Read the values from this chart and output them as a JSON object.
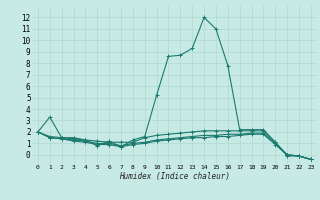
{
  "title": "",
  "xlabel": "Humidex (Indice chaleur)",
  "background_color": "#c8eae5",
  "grid_color": "#b0d8d3",
  "line_color": "#1a7a6e",
  "series1": {
    "x": [
      0,
      1,
      2,
      3,
      4,
      5,
      6,
      7,
      8,
      9,
      10,
      11,
      12,
      13,
      14,
      15,
      16,
      17,
      18,
      19,
      20,
      21,
      22,
      23
    ],
    "y": [
      2.0,
      3.3,
      1.5,
      1.5,
      1.3,
      0.8,
      1.2,
      0.7,
      1.3,
      1.6,
      5.2,
      8.6,
      8.7,
      9.3,
      12.0,
      11.0,
      7.8,
      2.2,
      2.2,
      2.2,
      1.1,
      -0.1,
      -0.1,
      -0.4
    ]
  },
  "series2": {
    "x": [
      0,
      1,
      2,
      3,
      4,
      5,
      6,
      7,
      8,
      9,
      10,
      11,
      12,
      13,
      14,
      15,
      16,
      17,
      18,
      19,
      20,
      21,
      22,
      23
    ],
    "y": [
      2.0,
      1.6,
      1.5,
      1.4,
      1.3,
      1.2,
      1.1,
      1.1,
      1.1,
      1.5,
      1.7,
      1.8,
      1.9,
      2.0,
      2.1,
      2.1,
      2.1,
      2.1,
      2.1,
      2.1,
      1.1,
      0.0,
      -0.1,
      -0.4
    ]
  },
  "series3": {
    "x": [
      0,
      1,
      2,
      3,
      4,
      5,
      6,
      7,
      8,
      9,
      10,
      11,
      12,
      13,
      14,
      15,
      16,
      17,
      18,
      19,
      20,
      21,
      22,
      23
    ],
    "y": [
      2.0,
      1.5,
      1.4,
      1.3,
      1.2,
      1.0,
      1.0,
      0.8,
      1.0,
      1.1,
      1.3,
      1.4,
      1.5,
      1.6,
      1.7,
      1.7,
      1.8,
      1.8,
      1.9,
      1.9,
      1.0,
      0.0,
      -0.1,
      -0.4
    ]
  },
  "series4": {
    "x": [
      0,
      1,
      2,
      3,
      4,
      5,
      6,
      7,
      8,
      9,
      10,
      11,
      12,
      13,
      14,
      15,
      16,
      17,
      18,
      19,
      20,
      21,
      22,
      23
    ],
    "y": [
      2.0,
      1.5,
      1.4,
      1.2,
      1.1,
      0.9,
      0.9,
      0.7,
      0.9,
      1.0,
      1.2,
      1.3,
      1.4,
      1.5,
      1.5,
      1.6,
      1.6,
      1.7,
      1.8,
      1.8,
      0.9,
      -0.0,
      -0.1,
      -0.4
    ]
  },
  "xlim": [
    -0.5,
    23.5
  ],
  "ylim": [
    -0.8,
    13
  ],
  "xticks": [
    0,
    1,
    2,
    3,
    4,
    5,
    6,
    7,
    8,
    9,
    10,
    11,
    12,
    13,
    14,
    15,
    16,
    17,
    18,
    19,
    20,
    21,
    22,
    23
  ],
  "yticks": [
    0,
    1,
    2,
    3,
    4,
    5,
    6,
    7,
    8,
    9,
    10,
    11,
    12
  ],
  "marker": "+"
}
